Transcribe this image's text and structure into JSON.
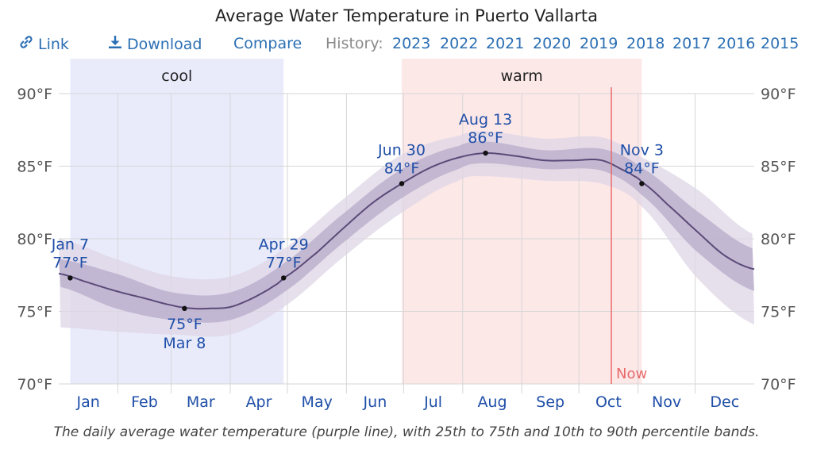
{
  "title": "Average Water Temperature in Puerto Vallarta",
  "toolbar": {
    "link_label": "Link",
    "download_label": "Download",
    "compare_label": "Compare",
    "history_label": "History:",
    "years": [
      "2023",
      "2022",
      "2021",
      "2020",
      "2019",
      "2018",
      "2017",
      "2016",
      "2015"
    ]
  },
  "caption": "The daily average water temperature (purple line), with 25th to 75th and 10th to 90th percentile bands.",
  "colors": {
    "line": "#5b4a78",
    "band_inner": "#b7abc9",
    "band_outer": "#ddd6e6",
    "cool": "#e9ebfb",
    "warm": "#fde8e8",
    "now": "#e86b6b",
    "label": "#1f4fa8",
    "grid": "#d6d6d6"
  },
  "chart_data": {
    "type": "area",
    "title": "Average Water Temperature in Puerto Vallarta",
    "xlabel": "",
    "ylabel": "",
    "ylim": [
      70,
      90
    ],
    "yticks": [
      "70°F",
      "75°F",
      "80°F",
      "85°F",
      "90°F"
    ],
    "months": [
      "Jan",
      "Feb",
      "Mar",
      "Apr",
      "May",
      "Jun",
      "Jul",
      "Aug",
      "Sep",
      "Oct",
      "Nov",
      "Dec"
    ],
    "grid": true,
    "seasons": [
      {
        "name": "cool",
        "start_day": 6,
        "end_day": 118
      },
      {
        "name": "warm",
        "start_day": 180,
        "end_day": 306
      }
    ],
    "now_label": "Now",
    "now_day": 290,
    "series": [
      {
        "name": "daily average water temperature",
        "x": [
          0,
          15,
          30,
          45,
          60,
          70,
          80,
          90,
          100,
          110,
          118,
          135,
          150,
          165,
          180,
          195,
          210,
          224,
          240,
          255,
          270,
          285,
          300,
          306,
          320,
          335,
          350,
          365
        ],
        "y": [
          77.6,
          77.0,
          76.4,
          75.9,
          75.4,
          75.2,
          75.2,
          75.3,
          75.8,
          76.5,
          77.3,
          79.0,
          80.8,
          82.5,
          83.8,
          84.9,
          85.6,
          85.9,
          85.7,
          85.4,
          85.4,
          85.4,
          84.5,
          83.9,
          82.3,
          80.5,
          78.8,
          77.9
        ]
      },
      {
        "name": "25th percentile",
        "x": [
          0,
          30,
          60,
          90,
          118,
          150,
          180,
          210,
          224,
          255,
          285,
          306,
          335,
          365
        ],
        "y": [
          76.7,
          75.2,
          74.4,
          74.4,
          76.3,
          79.8,
          82.8,
          84.8,
          85.2,
          84.8,
          84.7,
          83.0,
          79.1,
          76.4
        ]
      },
      {
        "name": "75th percentile",
        "x": [
          0,
          30,
          60,
          90,
          118,
          150,
          180,
          210,
          224,
          255,
          285,
          306,
          335,
          365
        ],
        "y": [
          78.6,
          77.6,
          76.3,
          76.3,
          78.3,
          81.8,
          84.8,
          86.4,
          86.7,
          86.1,
          86.2,
          84.9,
          81.9,
          79.3
        ]
      },
      {
        "name": "10th percentile",
        "x": [
          0,
          30,
          60,
          90,
          118,
          150,
          180,
          210,
          224,
          255,
          285,
          306,
          335,
          365
        ],
        "y": [
          73.9,
          73.6,
          73.4,
          73.4,
          75.3,
          78.8,
          81.8,
          84.0,
          84.3,
          84.0,
          83.8,
          82.2,
          77.3,
          74.1
        ]
      },
      {
        "name": "90th percentile",
        "x": [
          0,
          30,
          60,
          90,
          118,
          150,
          180,
          210,
          224,
          255,
          285,
          306,
          335,
          365
        ],
        "y": [
          80.0,
          78.6,
          77.4,
          77.4,
          79.3,
          82.8,
          85.8,
          87.1,
          87.4,
          86.9,
          87.0,
          85.6,
          83.4,
          80.3
        ]
      }
    ],
    "annotations": [
      {
        "day": 6,
        "temp": 77.3,
        "date": "Jan 7",
        "value": "77°F",
        "pos": "above"
      },
      {
        "day": 66,
        "temp": 75.2,
        "date": "Mar 8",
        "value": "75°F",
        "pos": "below"
      },
      {
        "day": 118,
        "temp": 77.3,
        "date": "Apr 29",
        "value": "77°F",
        "pos": "above"
      },
      {
        "day": 180,
        "temp": 83.8,
        "date": "Jun 30",
        "value": "84°F",
        "pos": "above"
      },
      {
        "day": 224,
        "temp": 85.9,
        "date": "Aug 13",
        "value": "86°F",
        "pos": "above"
      },
      {
        "day": 306,
        "temp": 83.8,
        "date": "Nov 3",
        "value": "84°F",
        "pos": "above"
      }
    ]
  }
}
